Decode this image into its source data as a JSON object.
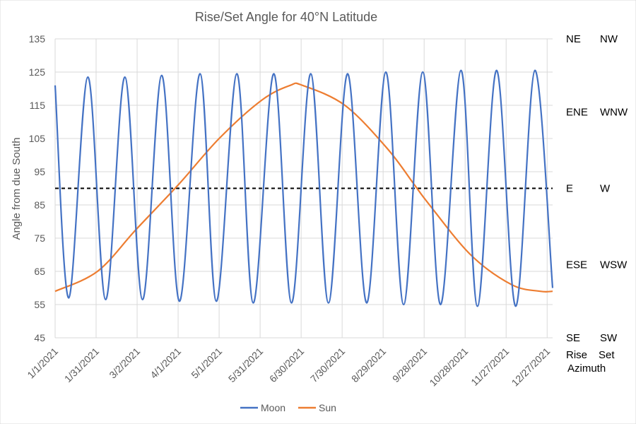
{
  "chart_data": {
    "type": "line",
    "title": "Rise/Set Angle for 40°N Latitude",
    "ylabel": "Angle from due South",
    "xlabel": "",
    "ylim": [
      45,
      135
    ],
    "y_ticks": [
      45,
      55,
      65,
      75,
      85,
      95,
      105,
      115,
      125,
      135
    ],
    "x_tick_labels": [
      "1/1/2021",
      "1/31/2021",
      "3/2/2021",
      "4/1/2021",
      "5/1/2021",
      "5/31/2021",
      "6/30/2021",
      "7/30/2021",
      "8/29/2021",
      "9/28/2021",
      "10/28/2021",
      "11/27/2021",
      "12/27/2021"
    ],
    "x_range_days": [
      0,
      364
    ],
    "grid": "vertical and horizontal",
    "legend_position": "bottom",
    "reference_line": {
      "y": 90,
      "style": "dashed",
      "color": "#000000"
    },
    "secondary_labels": {
      "rows": [
        {
          "y": 135,
          "rise": "NE",
          "set": "NW"
        },
        {
          "y": 113,
          "rise": "ENE",
          "set": "WNW"
        },
        {
          "y": 90,
          "rise": "E",
          "set": "W"
        },
        {
          "y": 67,
          "rise": "ESE",
          "set": "WSW"
        },
        {
          "y": 45,
          "rise": "SE",
          "set": "SW"
        }
      ],
      "footer_rise": "Rise",
      "footer_set": "Set",
      "footer_caption": "Azimuth"
    },
    "series": [
      {
        "name": "Moon",
        "color": "#4472C4",
        "x_days": [
          0,
          10,
          24,
          37,
          51,
          64,
          78,
          91,
          106,
          118,
          133,
          145,
          160,
          173,
          187,
          200,
          214,
          228,
          242,
          255,
          269,
          282,
          297,
          309,
          323,
          337,
          351,
          364
        ],
        "y": [
          121,
          57,
          123.5,
          56.5,
          123.5,
          56.5,
          124,
          56,
          124.5,
          56,
          124.5,
          55.5,
          124.5,
          55.5,
          124.5,
          55.5,
          124.5,
          55.5,
          125,
          55,
          125,
          55,
          125.5,
          54.5,
          125.5,
          54.5,
          125.5,
          60
        ]
      },
      {
        "name": "Sun",
        "color": "#ED7D31",
        "x_days": [
          0,
          31,
          59,
          90,
          120,
          151,
          172,
          181,
          212,
          243,
          263,
          273,
          304,
          334,
          355,
          364
        ],
        "y": [
          59,
          65,
          77.5,
          91,
          105,
          116.5,
          121,
          121,
          115,
          102,
          91,
          85.5,
          70,
          61,
          59,
          59
        ]
      }
    ]
  }
}
